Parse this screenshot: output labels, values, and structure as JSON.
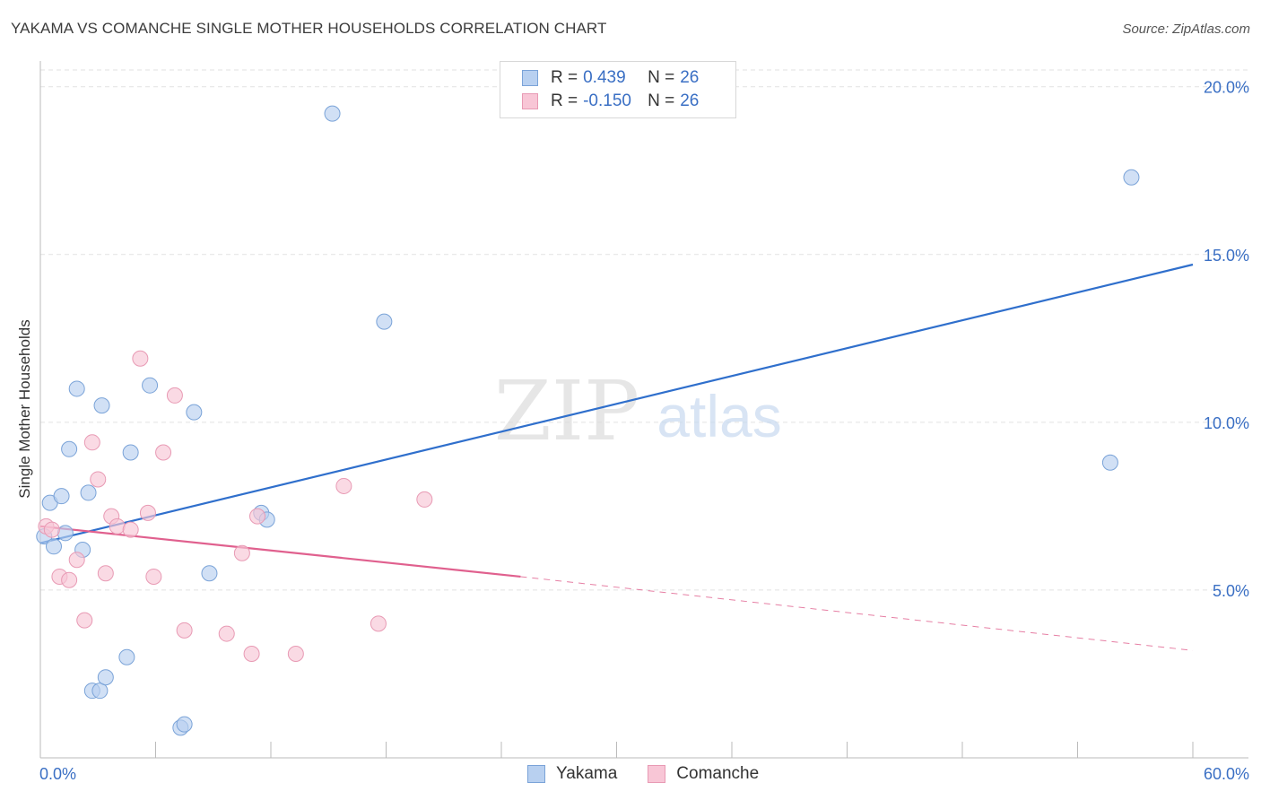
{
  "header": {
    "title": "YAKAMA VS COMANCHE SINGLE MOTHER HOUSEHOLDS CORRELATION CHART",
    "source": "Source: ZipAtlas.com"
  },
  "legend_top": {
    "rows": [
      {
        "r_label": "R =",
        "r_value": "0.439",
        "n_label": "N =",
        "n_value": "26"
      },
      {
        "r_label": "R =",
        "r_value": "-0.150",
        "n_label": "N =",
        "n_value": "26"
      }
    ]
  },
  "legend_bottom": {
    "items": [
      {
        "label": "Yakama"
      },
      {
        "label": "Comanche"
      }
    ]
  },
  "colors": {
    "yakama_fill": "#b8d0f0",
    "yakama_stroke": "#7aa3d8",
    "yakama_line": "#2f6fcc",
    "comanche_fill": "#f8c6d6",
    "comanche_stroke": "#e89ab4",
    "comanche_line": "#e0608e",
    "axis_label": "#3a6fc4",
    "grid": "#e2e2e2"
  },
  "watermark": {
    "zip": "ZIP",
    "atlas": "atlas"
  },
  "chart_data": {
    "type": "scatter",
    "title": "YAKAMA VS COMANCHE SINGLE MOTHER HOUSEHOLDS CORRELATION CHART",
    "xlabel": "",
    "ylabel": "Single Mother Households",
    "xlim": [
      0,
      60
    ],
    "ylim": [
      0,
      20.5
    ],
    "x_tick_labels": [
      "0.0%",
      "60.0%"
    ],
    "y_ticks": [
      5,
      10,
      15,
      20
    ],
    "y_tick_labels": [
      "5.0%",
      "10.0%",
      "15.0%",
      "20.0%"
    ],
    "grid": true,
    "series": [
      {
        "name": "Yakama",
        "r": 0.439,
        "n": 26,
        "points": [
          [
            0.2,
            6.6
          ],
          [
            0.5,
            7.6
          ],
          [
            0.7,
            6.3
          ],
          [
            1.1,
            7.8
          ],
          [
            1.3,
            6.7
          ],
          [
            1.5,
            9.2
          ],
          [
            1.9,
            11.0
          ],
          [
            2.2,
            6.2
          ],
          [
            2.5,
            7.9
          ],
          [
            2.7,
            2.0
          ],
          [
            3.1,
            2.0
          ],
          [
            3.2,
            10.5
          ],
          [
            3.4,
            2.4
          ],
          [
            4.5,
            3.0
          ],
          [
            4.7,
            9.1
          ],
          [
            5.7,
            11.1
          ],
          [
            7.3,
            0.9
          ],
          [
            7.5,
            1.0
          ],
          [
            8.0,
            10.3
          ],
          [
            8.8,
            5.5
          ],
          [
            11.5,
            7.3
          ],
          [
            11.8,
            7.1
          ],
          [
            15.2,
            19.2
          ],
          [
            17.9,
            13.0
          ],
          [
            55.7,
            8.8
          ],
          [
            56.8,
            17.3
          ]
        ],
        "trend": {
          "x": [
            0,
            60
          ],
          "y": [
            6.4,
            14.7
          ],
          "style": "solid"
        }
      },
      {
        "name": "Comanche",
        "r": -0.15,
        "n": 26,
        "points": [
          [
            0.3,
            6.9
          ],
          [
            0.6,
            6.8
          ],
          [
            1.0,
            5.4
          ],
          [
            1.5,
            5.3
          ],
          [
            1.9,
            5.9
          ],
          [
            2.3,
            4.1
          ],
          [
            2.7,
            9.4
          ],
          [
            3.0,
            8.3
          ],
          [
            3.4,
            5.5
          ],
          [
            3.7,
            7.2
          ],
          [
            4.0,
            6.9
          ],
          [
            4.7,
            6.8
          ],
          [
            5.2,
            11.9
          ],
          [
            5.6,
            7.3
          ],
          [
            5.9,
            5.4
          ],
          [
            6.4,
            9.1
          ],
          [
            7.0,
            10.8
          ],
          [
            7.5,
            3.8
          ],
          [
            9.7,
            3.7
          ],
          [
            10.5,
            6.1
          ],
          [
            11.0,
            3.1
          ],
          [
            11.3,
            7.2
          ],
          [
            13.3,
            3.1
          ],
          [
            15.8,
            8.1
          ],
          [
            17.6,
            4.0
          ],
          [
            20.0,
            7.7
          ]
        ],
        "trend": {
          "x": [
            0,
            25
          ],
          "y": [
            6.9,
            5.4
          ],
          "style": "solid"
        },
        "trend_extension": {
          "x": [
            25,
            60
          ],
          "y": [
            5.4,
            3.2
          ],
          "style": "dashed"
        }
      }
    ]
  }
}
